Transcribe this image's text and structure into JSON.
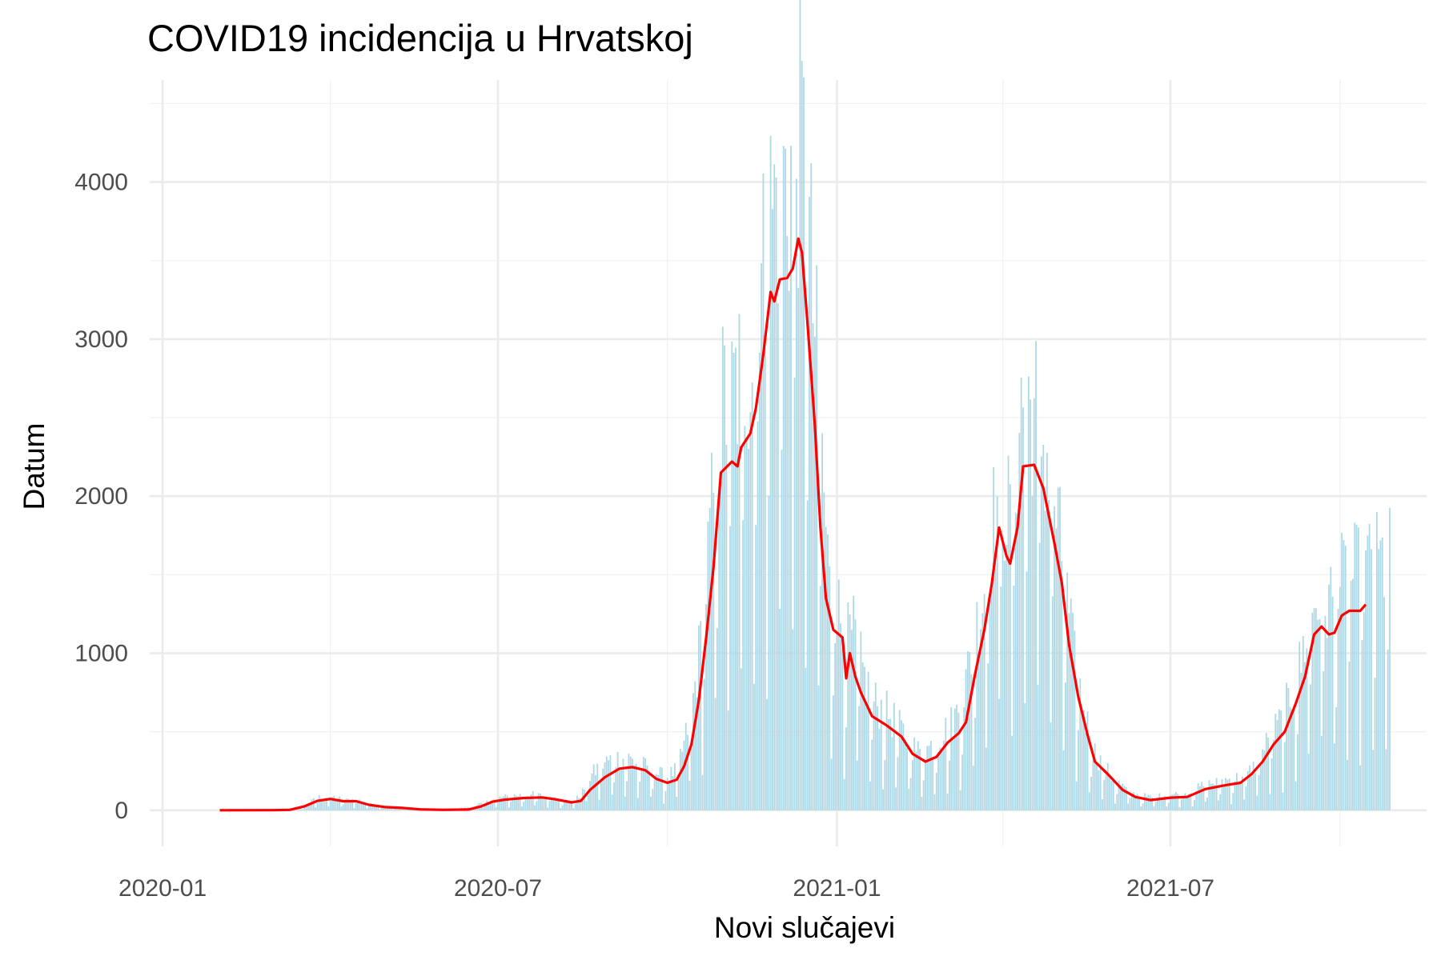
{
  "chart_data": {
    "type": "bar",
    "title": "COVID19 incidencija u Hrvatskoj",
    "xlabel": "Novi slučajevi",
    "ylabel": "Datum",
    "x_range": [
      "2019-12-25",
      "2021-11-17"
    ],
    "x_major_ticks": [
      "2020-01-01",
      "2020-07-01",
      "2021-01-01",
      "2021-07-01"
    ],
    "x_minor_ticks": [
      "2020-04-01",
      "2020-10-01",
      "2021-04-01",
      "2021-10-01"
    ],
    "x_tick_labels": [
      "2020-01",
      "2020-07",
      "2021-01",
      "2021-07"
    ],
    "ylim": [
      -230,
      4650
    ],
    "y_ticks": [
      0,
      1000,
      2000,
      3000,
      4000
    ],
    "y_tick_labels": [
      "0",
      "1000",
      "2000",
      "3000",
      "4000"
    ],
    "y_minor_ticks": [
      500,
      1500,
      2500,
      3500,
      4500
    ],
    "grid": true,
    "legend": "none",
    "colors": {
      "bars": "#add8e6",
      "trend": "#ff0000",
      "grid": "#ebebeb"
    },
    "series": [
      {
        "kind": "bar",
        "daily_dates_from": "2020-02-25",
        "daily_dates_to": "2021-10-28",
        "points": [
          [
            "2020-02-25",
            0
          ],
          [
            "2020-03-10",
            2
          ],
          [
            "2020-03-15",
            10
          ],
          [
            "2020-03-20",
            35
          ],
          [
            "2020-03-25",
            70
          ],
          [
            "2020-04-01",
            75
          ],
          [
            "2020-04-05",
            65
          ],
          [
            "2020-04-10",
            55
          ],
          [
            "2020-04-15",
            60
          ],
          [
            "2020-04-20",
            45
          ],
          [
            "2020-04-30",
            22
          ],
          [
            "2020-05-10",
            15
          ],
          [
            "2020-05-20",
            6
          ],
          [
            "2020-06-01",
            3
          ],
          [
            "2020-06-15",
            15
          ],
          [
            "2020-06-25",
            45
          ],
          [
            "2020-07-01",
            65
          ],
          [
            "2020-07-10",
            80
          ],
          [
            "2020-07-20",
            85
          ],
          [
            "2020-07-31",
            70
          ],
          [
            "2020-08-05",
            55
          ],
          [
            "2020-08-10",
            45
          ],
          [
            "2020-08-15",
            80
          ],
          [
            "2020-08-20",
            180
          ],
          [
            "2020-08-25",
            240
          ],
          [
            "2020-09-01",
            280
          ],
          [
            "2020-09-10",
            280
          ],
          [
            "2020-09-20",
            230
          ],
          [
            "2020-09-30",
            180
          ],
          [
            "2020-10-05",
            210
          ],
          [
            "2020-10-10",
            350
          ],
          [
            "2020-10-15",
            600
          ],
          [
            "2020-10-20",
            1000
          ],
          [
            "2020-10-25",
            1600
          ],
          [
            "2020-10-31",
            2200
          ],
          [
            "2020-11-05",
            2250
          ],
          [
            "2020-11-10",
            2350
          ],
          [
            "2020-11-15",
            2450
          ],
          [
            "2020-11-20",
            2700
          ],
          [
            "2020-11-25",
            3200
          ],
          [
            "2020-11-30",
            3350
          ],
          [
            "2020-12-05",
            3400
          ],
          [
            "2020-12-10",
            3550
          ],
          [
            "2020-12-12",
            3650
          ],
          [
            "2020-12-15",
            3400
          ],
          [
            "2020-12-20",
            2600
          ],
          [
            "2020-12-25",
            1700
          ],
          [
            "2020-12-28",
            1200
          ],
          [
            "2021-01-01",
            1130
          ],
          [
            "2021-01-05",
            900
          ],
          [
            "2021-01-10",
            950
          ],
          [
            "2021-01-15",
            750
          ],
          [
            "2021-01-20",
            600
          ],
          [
            "2021-01-31",
            500
          ],
          [
            "2021-02-10",
            360
          ],
          [
            "2021-02-15",
            310
          ],
          [
            "2021-02-20",
            340
          ],
          [
            "2021-02-28",
            420
          ],
          [
            "2021-03-05",
            480
          ],
          [
            "2021-03-10",
            600
          ],
          [
            "2021-03-15",
            850
          ],
          [
            "2021-03-20",
            1100
          ],
          [
            "2021-03-25",
            1450
          ],
          [
            "2021-03-31",
            1800
          ],
          [
            "2021-04-03",
            1650
          ],
          [
            "2021-04-05",
            1560
          ],
          [
            "2021-04-08",
            1780
          ],
          [
            "2021-04-10",
            2190
          ],
          [
            "2021-04-15",
            2200
          ],
          [
            "2021-04-20",
            2150
          ],
          [
            "2021-04-25",
            1900
          ],
          [
            "2021-04-30",
            1600
          ],
          [
            "2021-05-05",
            1200
          ],
          [
            "2021-05-10",
            800
          ],
          [
            "2021-05-15",
            550
          ],
          [
            "2021-05-20",
            330
          ],
          [
            "2021-05-25",
            250
          ],
          [
            "2021-05-31",
            170
          ],
          [
            "2021-06-05",
            130
          ],
          [
            "2021-06-10",
            90
          ],
          [
            "2021-06-20",
            70
          ],
          [
            "2021-07-01",
            85
          ],
          [
            "2021-07-10",
            90
          ],
          [
            "2021-07-20",
            140
          ],
          [
            "2021-07-31",
            165
          ],
          [
            "2021-08-10",
            180
          ],
          [
            "2021-08-15",
            230
          ],
          [
            "2021-08-20",
            320
          ],
          [
            "2021-08-25",
            410
          ],
          [
            "2021-08-31",
            500
          ],
          [
            "2021-09-05",
            650
          ],
          [
            "2021-09-10",
            800
          ],
          [
            "2021-09-15",
            1100
          ],
          [
            "2021-09-20",
            1170
          ],
          [
            "2021-09-25",
            1130
          ],
          [
            "2021-09-30",
            1200
          ],
          [
            "2021-10-05",
            1260
          ],
          [
            "2021-10-10",
            1270
          ],
          [
            "2021-10-15",
            1310
          ],
          [
            "2021-10-28",
            1350
          ]
        ]
      },
      {
        "kind": "line",
        "points": [
          [
            "2020-02-01",
            0
          ],
          [
            "2020-03-01",
            1
          ],
          [
            "2020-03-10",
            3
          ],
          [
            "2020-03-18",
            25
          ],
          [
            "2020-03-25",
            60
          ],
          [
            "2020-04-01",
            72
          ],
          [
            "2020-04-08",
            58
          ],
          [
            "2020-04-15",
            58
          ],
          [
            "2020-04-22",
            35
          ],
          [
            "2020-05-01",
            20
          ],
          [
            "2020-05-10",
            15
          ],
          [
            "2020-05-20",
            6
          ],
          [
            "2020-06-01",
            3
          ],
          [
            "2020-06-15",
            5
          ],
          [
            "2020-06-22",
            25
          ],
          [
            "2020-06-28",
            55
          ],
          [
            "2020-07-05",
            68
          ],
          [
            "2020-07-15",
            78
          ],
          [
            "2020-07-25",
            82
          ],
          [
            "2020-08-01",
            70
          ],
          [
            "2020-08-10",
            50
          ],
          [
            "2020-08-15",
            60
          ],
          [
            "2020-08-20",
            130
          ],
          [
            "2020-08-28",
            210
          ],
          [
            "2020-09-05",
            265
          ],
          [
            "2020-09-12",
            275
          ],
          [
            "2020-09-19",
            255
          ],
          [
            "2020-09-25",
            200
          ],
          [
            "2020-10-01",
            175
          ],
          [
            "2020-10-06",
            195
          ],
          [
            "2020-10-10",
            280
          ],
          [
            "2020-10-14",
            420
          ],
          [
            "2020-10-18",
            700
          ],
          [
            "2020-10-22",
            1100
          ],
          [
            "2020-10-26",
            1550
          ],
          [
            "2020-10-30",
            2150
          ],
          [
            "2020-11-05",
            2220
          ],
          [
            "2020-11-08",
            2190
          ],
          [
            "2020-11-10",
            2310
          ],
          [
            "2020-11-15",
            2400
          ],
          [
            "2020-11-18",
            2560
          ],
          [
            "2020-11-22",
            2900
          ],
          [
            "2020-11-26",
            3300
          ],
          [
            "2020-11-28",
            3240
          ],
          [
            "2020-12-01",
            3380
          ],
          [
            "2020-12-05",
            3390
          ],
          [
            "2020-12-08",
            3450
          ],
          [
            "2020-12-11",
            3640
          ],
          [
            "2020-12-13",
            3550
          ],
          [
            "2020-12-16",
            3100
          ],
          [
            "2020-12-20",
            2450
          ],
          [
            "2020-12-23",
            1800
          ],
          [
            "2020-12-26",
            1350
          ],
          [
            "2020-12-30",
            1150
          ],
          [
            "2021-01-04",
            1100
          ],
          [
            "2021-01-06",
            840
          ],
          [
            "2021-01-08",
            1000
          ],
          [
            "2021-01-11",
            850
          ],
          [
            "2021-01-14",
            750
          ],
          [
            "2021-01-20",
            600
          ],
          [
            "2021-01-28",
            540
          ],
          [
            "2021-02-05",
            470
          ],
          [
            "2021-02-11",
            360
          ],
          [
            "2021-02-18",
            310
          ],
          [
            "2021-02-24",
            340
          ],
          [
            "2021-03-02",
            430
          ],
          [
            "2021-03-08",
            490
          ],
          [
            "2021-03-12",
            560
          ],
          [
            "2021-03-17",
            870
          ],
          [
            "2021-03-22",
            1150
          ],
          [
            "2021-03-26",
            1440
          ],
          [
            "2021-03-30",
            1800
          ],
          [
            "2021-04-03",
            1620
          ],
          [
            "2021-04-05",
            1570
          ],
          [
            "2021-04-09",
            1800
          ],
          [
            "2021-04-12",
            2190
          ],
          [
            "2021-04-18",
            2200
          ],
          [
            "2021-04-23",
            2050
          ],
          [
            "2021-04-29",
            1700
          ],
          [
            "2021-05-03",
            1450
          ],
          [
            "2021-05-07",
            1050
          ],
          [
            "2021-05-12",
            720
          ],
          [
            "2021-05-17",
            480
          ],
          [
            "2021-05-21",
            310
          ],
          [
            "2021-05-28",
            230
          ],
          [
            "2021-06-05",
            130
          ],
          [
            "2021-06-12",
            85
          ],
          [
            "2021-06-20",
            65
          ],
          [
            "2021-07-01",
            80
          ],
          [
            "2021-07-10",
            85
          ],
          [
            "2021-07-20",
            135
          ],
          [
            "2021-07-31",
            160
          ],
          [
            "2021-08-08",
            175
          ],
          [
            "2021-08-14",
            230
          ],
          [
            "2021-08-20",
            310
          ],
          [
            "2021-08-26",
            420
          ],
          [
            "2021-09-01",
            500
          ],
          [
            "2021-09-07",
            680
          ],
          [
            "2021-09-12",
            850
          ],
          [
            "2021-09-17",
            1120
          ],
          [
            "2021-09-21",
            1170
          ],
          [
            "2021-09-25",
            1120
          ],
          [
            "2021-09-28",
            1130
          ],
          [
            "2021-10-02",
            1240
          ],
          [
            "2021-10-06",
            1270
          ],
          [
            "2021-10-12",
            1270
          ],
          [
            "2021-10-15",
            1310
          ]
        ]
      }
    ]
  }
}
